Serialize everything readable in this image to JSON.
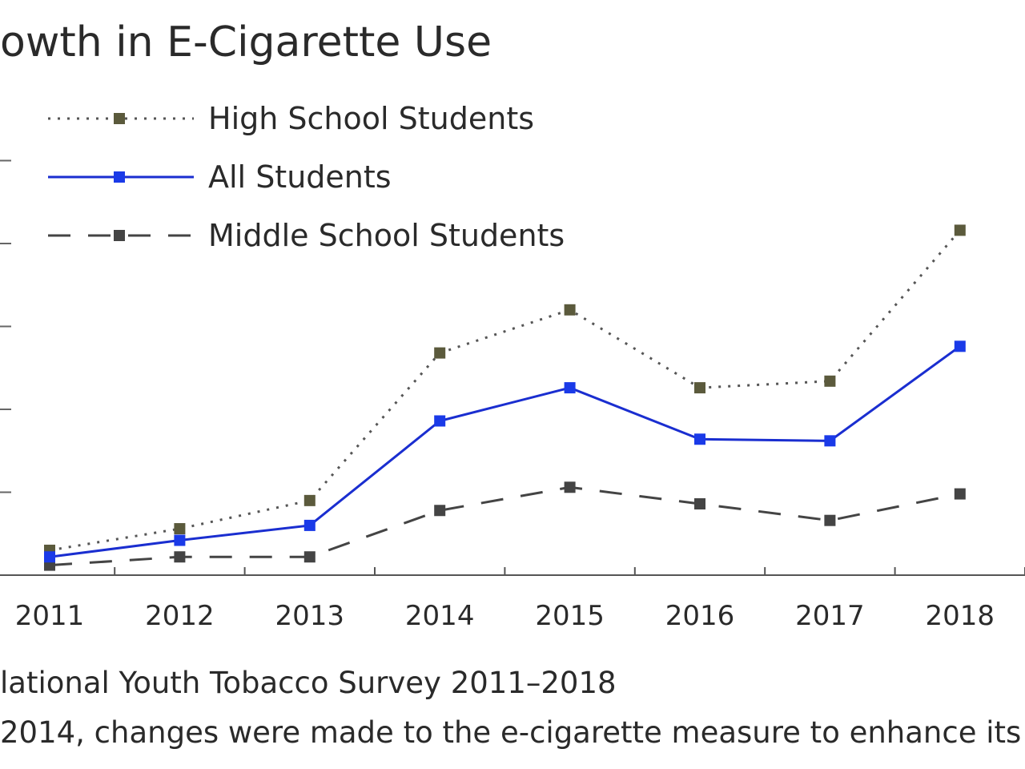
{
  "chart_data": {
    "type": "line",
    "title": "owth in E-Cigarette Use",
    "categories": [
      "2011",
      "2012",
      "2013",
      "2014",
      "2015",
      "2016",
      "2017",
      "2018"
    ],
    "ylim": [
      0,
      25
    ],
    "yticks": [
      0,
      5,
      10,
      15,
      20,
      25
    ],
    "grid": false,
    "legend_position": "top-left",
    "series": [
      {
        "name": "High School Students",
        "values": [
          1.5,
          2.8,
          4.5,
          13.4,
          16.0,
          11.3,
          11.7,
          20.8
        ],
        "color": "#5b5a3c",
        "line_color": "#555555",
        "style": "dotted"
      },
      {
        "name": "All Students",
        "values": [
          1.1,
          2.1,
          3.0,
          9.3,
          11.3,
          8.2,
          8.1,
          13.8
        ],
        "color": "#1a3ae8",
        "line_color": "#1a2ed0",
        "style": "solid"
      },
      {
        "name": "Middle School Students",
        "values": [
          0.6,
          1.1,
          1.1,
          3.9,
          5.3,
          4.3,
          3.3,
          4.9
        ],
        "color": "#444444",
        "line_color": "#444444",
        "style": "dashed"
      }
    ],
    "source": "lational Youth Tobacco Survey 2011–2018",
    "note": "2014, changes were made to the e-cigarette measure to enhance its ..."
  }
}
